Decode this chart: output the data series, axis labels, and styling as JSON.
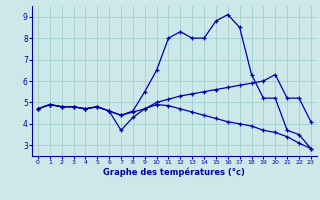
{
  "x": [
    0,
    1,
    2,
    3,
    4,
    5,
    6,
    7,
    8,
    9,
    10,
    11,
    12,
    13,
    14,
    15,
    16,
    17,
    18,
    19,
    20,
    21,
    22,
    23
  ],
  "line1": [
    4.7,
    4.9,
    4.8,
    4.8,
    4.7,
    4.8,
    4.6,
    4.4,
    4.6,
    5.5,
    6.5,
    8.0,
    8.3,
    8.0,
    8.0,
    8.8,
    9.1,
    8.5,
    6.3,
    5.2,
    5.2,
    3.7,
    3.5,
    2.85
  ],
  "line2": [
    4.7,
    4.9,
    4.8,
    4.8,
    4.7,
    4.8,
    4.6,
    4.4,
    4.55,
    4.7,
    5.0,
    5.15,
    5.3,
    5.4,
    5.5,
    5.6,
    5.7,
    5.8,
    5.9,
    6.0,
    6.3,
    5.2,
    5.2,
    4.1
  ],
  "line3": [
    4.7,
    4.9,
    4.8,
    4.8,
    4.7,
    4.8,
    4.6,
    3.7,
    4.3,
    4.7,
    4.9,
    4.85,
    4.7,
    4.55,
    4.4,
    4.25,
    4.1,
    4.0,
    3.9,
    3.7,
    3.6,
    3.4,
    3.1,
    2.85
  ],
  "bg_color": "#cce8e8",
  "grid_color": "#99cccc",
  "line_color": "#0000aa",
  "xlabel": "Graphe des températures (°c)",
  "ylim": [
    2.5,
    9.5
  ],
  "xlim": [
    -0.5,
    23.5
  ],
  "yticks": [
    3,
    4,
    5,
    6,
    7,
    8,
    9
  ],
  "xticks": [
    0,
    1,
    2,
    3,
    4,
    5,
    6,
    7,
    8,
    9,
    10,
    11,
    12,
    13,
    14,
    15,
    16,
    17,
    18,
    19,
    20,
    21,
    22,
    23
  ]
}
